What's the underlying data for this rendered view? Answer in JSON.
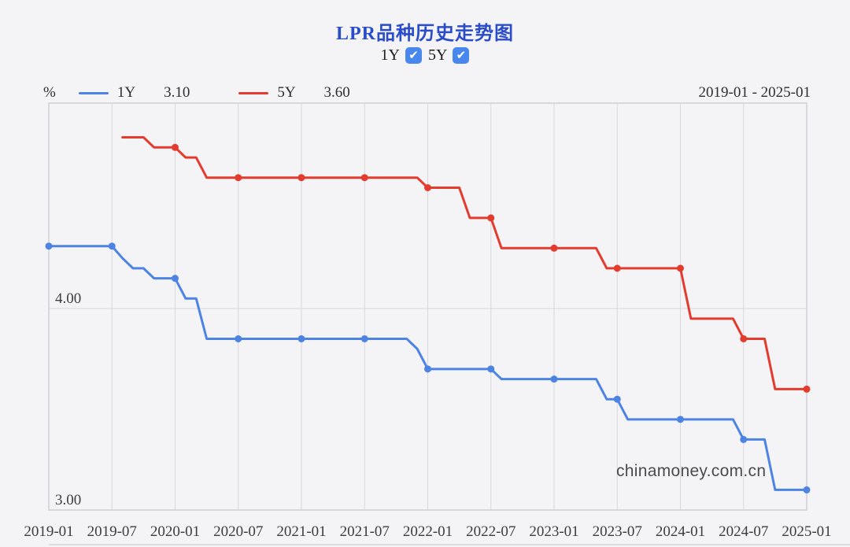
{
  "page": {
    "title": "LPR品种历史走势图",
    "title_color": "#2a4cc9",
    "unit_label": "%",
    "date_range": "2019-01 - 2025-01",
    "watermark": "chinamoney.com.cn"
  },
  "toggles": [
    {
      "label": "1Y",
      "checked": true
    },
    {
      "label": "5Y",
      "checked": true
    }
  ],
  "toggle_color": "#4787ee",
  "legend": [
    {
      "label": "1Y",
      "value": "3.10",
      "color": "#4d83e3"
    },
    {
      "label": "5Y",
      "value": "3.60",
      "color": "#e33b2d"
    }
  ],
  "chart_data": {
    "type": "line",
    "title": "LPR品种历史走势图",
    "xlabel": "",
    "ylabel": "%",
    "ylim": [
      3.0,
      5.02
    ],
    "grid": true,
    "grid_color": "#d7d7de",
    "frame_color": "#cfcfd6",
    "axis_text_color": "#3d3d3d",
    "tick_interval_months": 6,
    "x_tick_labels": [
      "2019-01",
      "2019-07",
      "2020-01",
      "2020-07",
      "2021-01",
      "2021-07",
      "2022-01",
      "2022-07",
      "2023-01",
      "2023-07",
      "2024-01",
      "2024-07",
      "2025-01"
    ],
    "y_ticks": [
      {
        "label": "3.00",
        "value": 3.0
      },
      {
        "label": "4.00",
        "value": 4.0
      }
    ],
    "series": [
      {
        "name": "1Y",
        "color": "#4d83e3",
        "current_value": 3.1,
        "start_month": "2019-01",
        "start_index": 0,
        "monthly_values": [
          4.31,
          4.31,
          4.31,
          4.31,
          4.31,
          4.31,
          4.31,
          4.25,
          4.2,
          4.2,
          4.15,
          4.15,
          4.15,
          4.05,
          4.05,
          3.85,
          3.85,
          3.85,
          3.85,
          3.85,
          3.85,
          3.85,
          3.85,
          3.85,
          3.85,
          3.85,
          3.85,
          3.85,
          3.85,
          3.85,
          3.85,
          3.85,
          3.85,
          3.85,
          3.85,
          3.8,
          3.7,
          3.7,
          3.7,
          3.7,
          3.7,
          3.7,
          3.7,
          3.65,
          3.65,
          3.65,
          3.65,
          3.65,
          3.65,
          3.65,
          3.65,
          3.65,
          3.65,
          3.55,
          3.55,
          3.45,
          3.45,
          3.45,
          3.45,
          3.45,
          3.45,
          3.45,
          3.45,
          3.45,
          3.45,
          3.45,
          3.35,
          3.35,
          3.35,
          3.1,
          3.1,
          3.1,
          3.1
        ]
      },
      {
        "name": "5Y",
        "color": "#e33b2d",
        "current_value": 3.6,
        "start_month": "2019-08",
        "start_index": 7,
        "monthly_values": [
          4.85,
          4.85,
          4.85,
          4.8,
          4.8,
          4.8,
          4.75,
          4.75,
          4.65,
          4.65,
          4.65,
          4.65,
          4.65,
          4.65,
          4.65,
          4.65,
          4.65,
          4.65,
          4.65,
          4.65,
          4.65,
          4.65,
          4.65,
          4.65,
          4.65,
          4.65,
          4.65,
          4.65,
          4.65,
          4.6,
          4.6,
          4.6,
          4.6,
          4.45,
          4.45,
          4.45,
          4.3,
          4.3,
          4.3,
          4.3,
          4.3,
          4.3,
          4.3,
          4.3,
          4.3,
          4.3,
          4.2,
          4.2,
          4.2,
          4.2,
          4.2,
          4.2,
          4.2,
          4.2,
          3.95,
          3.95,
          3.95,
          3.95,
          3.95,
          3.85,
          3.85,
          3.85,
          3.6,
          3.6,
          3.6,
          3.6
        ]
      }
    ]
  }
}
